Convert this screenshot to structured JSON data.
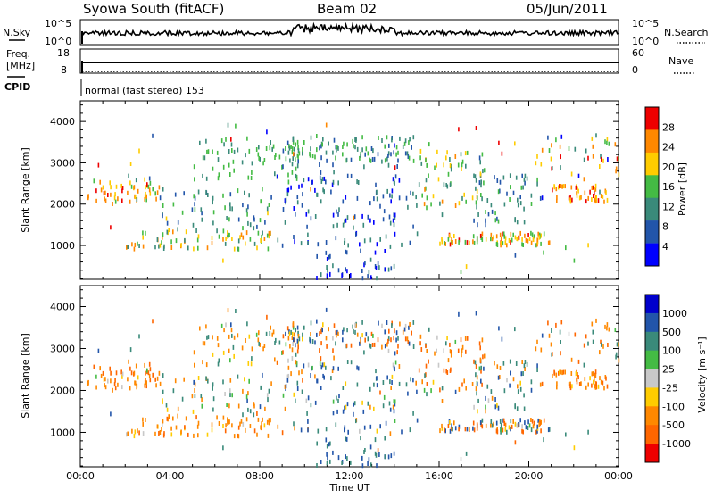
{
  "header": {
    "station": "Syowa South (fitACF)",
    "beam": "Beam 02",
    "date": "05/Jun/2011"
  },
  "noise_panel": {
    "left_label": "N.Sky",
    "right_label": "N.Search",
    "left_ticks": [
      "10^5",
      "10^0"
    ],
    "right_ticks": [
      "10^5",
      "10^0"
    ]
  },
  "freq_panel": {
    "left_label_1": "Freq.",
    "left_label_2": "[MHz]",
    "right_label": "Nave",
    "left_ticks": [
      "18",
      "8"
    ],
    "right_ticks": [
      "60",
      "0"
    ]
  },
  "cpid": {
    "label": "CPID",
    "text": "normal (fast stereo) 153"
  },
  "axes": {
    "ylabel": "Slant Range [km]",
    "xlabel": "Time UT",
    "y_ticks": [
      "1000",
      "2000",
      "3000",
      "4000"
    ],
    "x_ticks": [
      "00:00",
      "04:00",
      "08:00",
      "12:00",
      "16:00",
      "20:00",
      "00:00"
    ]
  },
  "colorbars": {
    "power": {
      "label": "Power [dB]",
      "ticks": [
        "4",
        "8",
        "12",
        "16",
        "20",
        "24",
        "28"
      ],
      "colors": [
        "#0000ff",
        "#2255aa",
        "#3a8a7a",
        "#44bb44",
        "#ffcc00",
        "#ff8800",
        "#ee0000"
      ]
    },
    "velocity": {
      "label": "Velocity [m s⁻¹]",
      "ticks": [
        "1000",
        "500",
        "100",
        "25",
        "-25",
        "-100",
        "-500",
        "-1000"
      ],
      "colors": [
        "#0000cc",
        "#2255aa",
        "#3a8a7a",
        "#44bb44",
        "#c8c8c8",
        "#ffcc00",
        "#ff8800",
        "#ff6600",
        "#ee0000"
      ]
    }
  },
  "chart_data": [
    {
      "type": "scatter",
      "name": "power",
      "x_range_hours": [
        0,
        24
      ],
      "y_range_km": [
        180,
        4500
      ],
      "description_units": "dB",
      "clusters": [
        {
          "t0": 0.3,
          "t1": 3.5,
          "r0": 2000,
          "r1": 2600,
          "v0": 16,
          "v1": 28,
          "n": 55
        },
        {
          "t0": 2.0,
          "t1": 8.5,
          "r0": 900,
          "r1": 1400,
          "v0": 10,
          "v1": 26,
          "n": 80
        },
        {
          "t0": 3.5,
          "t1": 8.5,
          "r0": 1400,
          "r1": 2400,
          "v0": 6,
          "v1": 18,
          "n": 55
        },
        {
          "t0": 5.0,
          "t1": 10.0,
          "r0": 2600,
          "r1": 3600,
          "v0": 12,
          "v1": 18,
          "n": 70
        },
        {
          "t0": 9.0,
          "t1": 15.0,
          "r0": 2900,
          "r1": 3650,
          "v0": 8,
          "v1": 18,
          "n": 110
        },
        {
          "t0": 9.0,
          "t1": 15.0,
          "r0": 1000,
          "r1": 2700,
          "v0": 4,
          "v1": 14,
          "n": 120
        },
        {
          "t0": 10.5,
          "t1": 14.0,
          "r0": 200,
          "r1": 900,
          "v0": 4,
          "v1": 12,
          "n": 40
        },
        {
          "t0": 15.0,
          "t1": 18.0,
          "r0": 2000,
          "r1": 3300,
          "v0": 10,
          "v1": 24,
          "n": 60
        },
        {
          "t0": 16.0,
          "t1": 21.0,
          "r0": 1000,
          "r1": 1300,
          "v0": 14,
          "v1": 28,
          "n": 90
        },
        {
          "t0": 17.5,
          "t1": 20.5,
          "r0": 1500,
          "r1": 2700,
          "v0": 6,
          "v1": 16,
          "n": 55
        },
        {
          "t0": 21.0,
          "t1": 23.5,
          "r0": 2050,
          "r1": 2450,
          "v0": 18,
          "v1": 28,
          "n": 50
        },
        {
          "t0": 20.0,
          "t1": 24.0,
          "r0": 2600,
          "r1": 3600,
          "v0": 10,
          "v1": 28,
          "n": 35
        },
        {
          "t0": 0.0,
          "t1": 24.0,
          "r0": 300,
          "r1": 4000,
          "v0": 4,
          "v1": 28,
          "n": 70
        }
      ]
    },
    {
      "type": "scatter",
      "name": "velocity",
      "x_range_hours": [
        0,
        24
      ],
      "y_range_km": [
        180,
        4500
      ],
      "description_units": "m s-1",
      "clusters": [
        {
          "t0": 0.3,
          "t1": 3.5,
          "r0": 2000,
          "r1": 2600,
          "v0": -1000,
          "v1": 100,
          "n": 55
        },
        {
          "t0": 2.0,
          "t1": 8.5,
          "r0": 900,
          "r1": 1400,
          "v0": -600,
          "v1": 0,
          "n": 80
        },
        {
          "t0": 3.5,
          "t1": 8.5,
          "r0": 1400,
          "r1": 2400,
          "v0": -400,
          "v1": 600,
          "n": 55
        },
        {
          "t0": 5.0,
          "t1": 10.0,
          "r0": 2600,
          "r1": 3600,
          "v0": -500,
          "v1": 300,
          "n": 70
        },
        {
          "t0": 9.0,
          "t1": 15.0,
          "r0": 2900,
          "r1": 3650,
          "v0": -1000,
          "v1": 1000,
          "n": 110
        },
        {
          "t0": 9.0,
          "t1": 15.0,
          "r0": 1000,
          "r1": 2700,
          "v0": -200,
          "v1": 1000,
          "n": 120
        },
        {
          "t0": 10.5,
          "t1": 14.0,
          "r0": 200,
          "r1": 900,
          "v0": 200,
          "v1": 1000,
          "n": 40
        },
        {
          "t0": 15.0,
          "t1": 18.0,
          "r0": 2000,
          "r1": 3300,
          "v0": -1000,
          "v1": 200,
          "n": 60
        },
        {
          "t0": 16.0,
          "t1": 21.0,
          "r0": 1000,
          "r1": 1300,
          "v0": -1000,
          "v1": 1000,
          "n": 90
        },
        {
          "t0": 17.5,
          "t1": 20.5,
          "r0": 1500,
          "r1": 2700,
          "v0": -300,
          "v1": 700,
          "n": 55
        },
        {
          "t0": 21.0,
          "t1": 23.5,
          "r0": 2050,
          "r1": 2450,
          "v0": -800,
          "v1": -50,
          "n": 50
        },
        {
          "t0": 20.0,
          "t1": 24.0,
          "r0": 2600,
          "r1": 3600,
          "v0": -1000,
          "v1": 500,
          "n": 35
        },
        {
          "t0": 0.0,
          "t1": 24.0,
          "r0": 300,
          "r1": 4000,
          "v0": -1000,
          "v1": 1000,
          "n": 70
        }
      ]
    }
  ]
}
